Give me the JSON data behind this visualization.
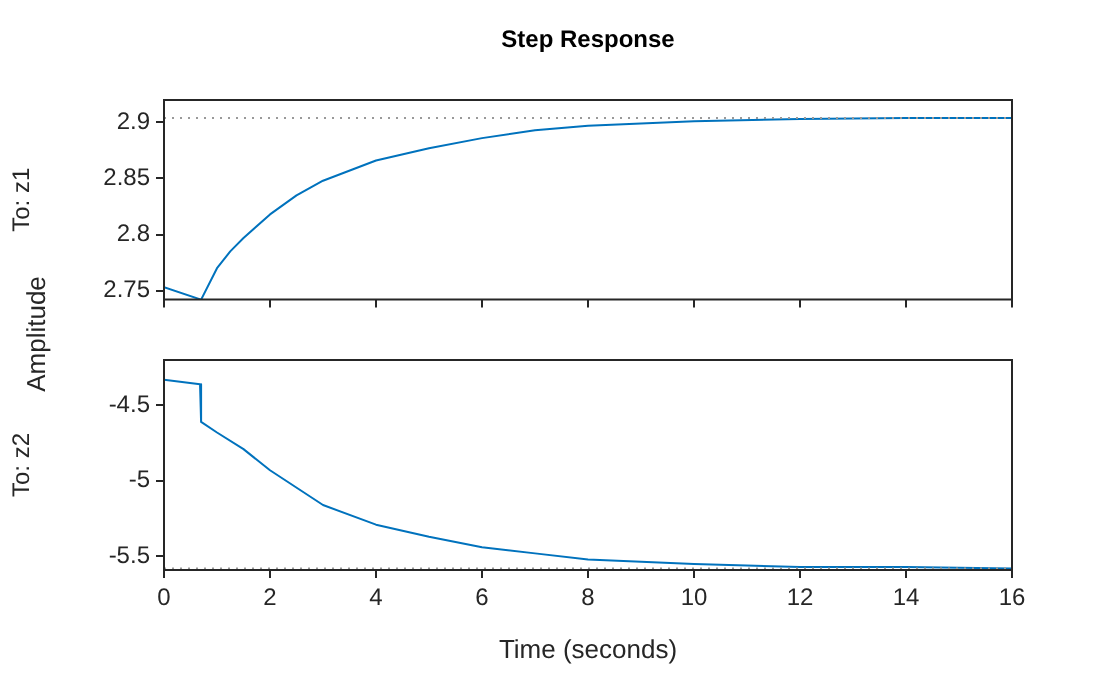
{
  "chart_data": [
    {
      "type": "line",
      "title": "Step Response",
      "ylabel": "To: z1",
      "annotations": [
        "Amplitude"
      ],
      "x": [
        0,
        0.7,
        1.0,
        1.25,
        1.5,
        2,
        2.5,
        3,
        4,
        5,
        6,
        7,
        8,
        10,
        12,
        14,
        16
      ],
      "series": [
        {
          "color": "#0072bd",
          "values": [
            2.753,
            2.742,
            2.77,
            2.785,
            2.797,
            2.818,
            2.835,
            2.848,
            2.866,
            2.877,
            2.886,
            2.893,
            2.897,
            2.901,
            2.903,
            2.904,
            2.904
          ]
        }
      ],
      "xlim": [
        0,
        16
      ],
      "xticks": [
        0,
        2,
        4,
        6,
        8,
        10,
        12,
        14,
        16
      ],
      "ylim": [
        2.742,
        2.92
      ],
      "yticks": [
        2.75,
        2.8,
        2.85,
        2.9
      ],
      "ref_lines": [
        {
          "axis": "y",
          "value": 2.904,
          "color": "#999999",
          "line_style": "dotted"
        }
      ],
      "tick_labels": "y",
      "grid": false,
      "legend": false,
      "marker": "none",
      "line_style": "solid"
    },
    {
      "type": "line",
      "ylabel": "To: z2",
      "xlabel": "Time (seconds)",
      "x": [
        0,
        0.68,
        0.7,
        1.0,
        1.5,
        2,
        3,
        4,
        5,
        6,
        7,
        8,
        10,
        12,
        14,
        16
      ],
      "series": [
        {
          "color": "#0072bd",
          "values": [
            -4.33,
            -4.36,
            -4.61,
            -4.68,
            -4.79,
            -4.93,
            -5.16,
            -5.29,
            -5.37,
            -5.44,
            -5.48,
            -5.52,
            -5.55,
            -5.57,
            -5.57,
            -5.58
          ]
        }
      ],
      "xlim": [
        0,
        16
      ],
      "xticks": [
        0,
        2,
        4,
        6,
        8,
        10,
        12,
        14,
        16
      ],
      "ylim": [
        -5.59,
        -4.2
      ],
      "yticks": [
        -5.5,
        -5,
        -4.5
      ],
      "ref_lines": [
        {
          "axis": "y",
          "value": -5.58,
          "color": "#999999",
          "line_style": "dotted"
        }
      ],
      "grid": false,
      "legend": false,
      "marker": "none",
      "line_style": "solid"
    }
  ]
}
